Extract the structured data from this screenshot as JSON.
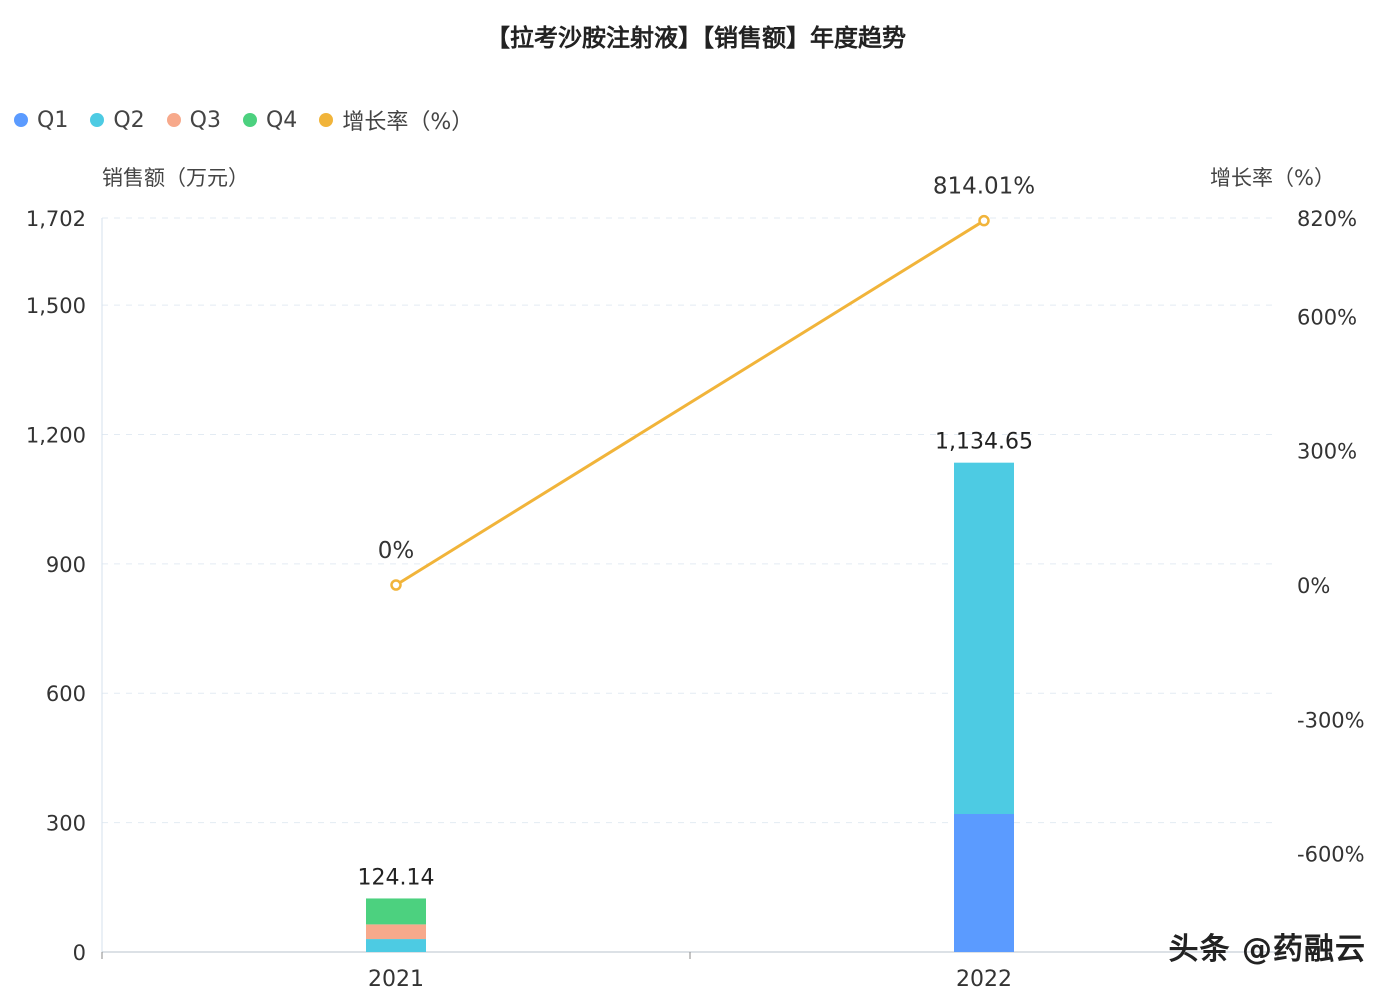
{
  "chart_data": {
    "type": "bar",
    "title": "【拉考沙胺注射液】【销售额】年度趋势",
    "categories": [
      "2021",
      "2022"
    ],
    "ylabel_left": "销售额（万元）",
    "ylabel_right": "增长率（%）",
    "ylim_left": [
      0,
      1702
    ],
    "yticks_left": [
      "0",
      "300",
      "600",
      "900",
      "1,200",
      "1,500",
      "1,702"
    ],
    "yticks_left_values": [
      0,
      300,
      600,
      900,
      1200,
      1500,
      1702
    ],
    "ylim_right": [
      -820,
      820
    ],
    "yticks_right": [
      "-600%",
      "-300%",
      "0%",
      "300%",
      "600%",
      "820%"
    ],
    "yticks_right_values": [
      -600,
      -300,
      0,
      300,
      600,
      820
    ],
    "legend_placement": "top-left",
    "grid": true,
    "series": [
      {
        "name": "Q1",
        "type": "bar",
        "color": "#5b9bff",
        "values": [
          0,
          320
        ]
      },
      {
        "name": "Q2",
        "type": "bar",
        "color": "#4dcbe3",
        "values": [
          30,
          814.65
        ]
      },
      {
        "name": "Q3",
        "type": "bar",
        "color": "#f7a98b",
        "values": [
          34,
          0
        ]
      },
      {
        "name": "Q4",
        "type": "bar",
        "color": "#4cd17f",
        "values": [
          60.14,
          0
        ]
      },
      {
        "name": "增长率（%）",
        "type": "line",
        "color": "#f1b43a",
        "values": [
          0,
          814.01
        ]
      }
    ],
    "totals": [
      124.14,
      1134.65
    ],
    "total_labels": [
      "124.14",
      "1,134.65"
    ],
    "growth_labels": [
      "0%",
      "814.01%"
    ]
  },
  "watermark": "头条 @药融云"
}
